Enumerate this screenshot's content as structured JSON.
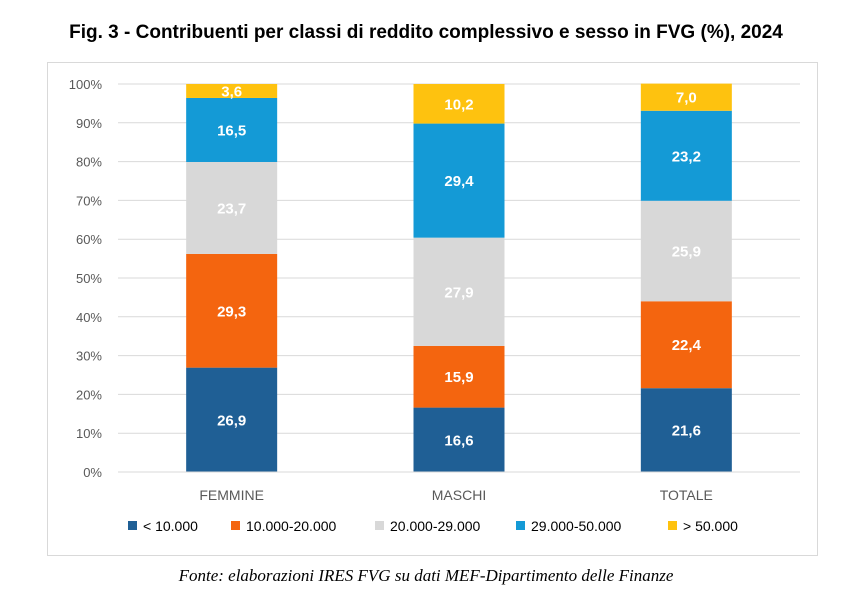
{
  "title": "Fig. 3 - Contribuenti per classi di reddito complessivo e sesso in FVG (%), 2024",
  "source": "Fonte: elaborazioni IRES FVG su dati MEF-Dipartimento delle Finanze",
  "chart_data": {
    "type": "bar",
    "stacked": true,
    "categories": [
      "FEMMINE",
      "MASCHI",
      "TOTALE"
    ],
    "series": [
      {
        "name": "< 10.000",
        "color": "#1f5f95",
        "values": [
          26.9,
          16.6,
          21.6
        ],
        "labels": [
          "26,9",
          "16,6",
          "21,6"
        ],
        "label_color": "#ffffff"
      },
      {
        "name": "10.000-20.000",
        "color": "#f4650f",
        "values": [
          29.3,
          15.9,
          22.4
        ],
        "labels": [
          "29,3",
          "15,9",
          "22,4"
        ],
        "label_color": "#ffffff"
      },
      {
        "name": "20.000-29.000",
        "color": "#d8d8d8",
        "values": [
          23.7,
          27.9,
          25.9
        ],
        "labels": [
          "23,7",
          "27,9",
          "25,9"
        ],
        "label_color": "#ffffff"
      },
      {
        "name": "29.000-50.000",
        "color": "#149ad6",
        "values": [
          16.5,
          29.4,
          23.2
        ],
        "labels": [
          "16,5",
          "29,4",
          "23,2"
        ],
        "label_color": "#ffffff"
      },
      {
        "name": "> 50.000",
        "color": "#fec20f",
        "values": [
          3.6,
          10.2,
          7.0
        ],
        "labels": [
          "3,6",
          "10,2",
          "7,0"
        ],
        "label_color": "#ffffff"
      }
    ],
    "ylim": [
      0,
      100
    ],
    "yticks": [
      "0%",
      "10%",
      "20%",
      "30%",
      "40%",
      "50%",
      "60%",
      "70%",
      "80%",
      "90%",
      "100%"
    ],
    "grid": true,
    "legend": "bottom"
  }
}
